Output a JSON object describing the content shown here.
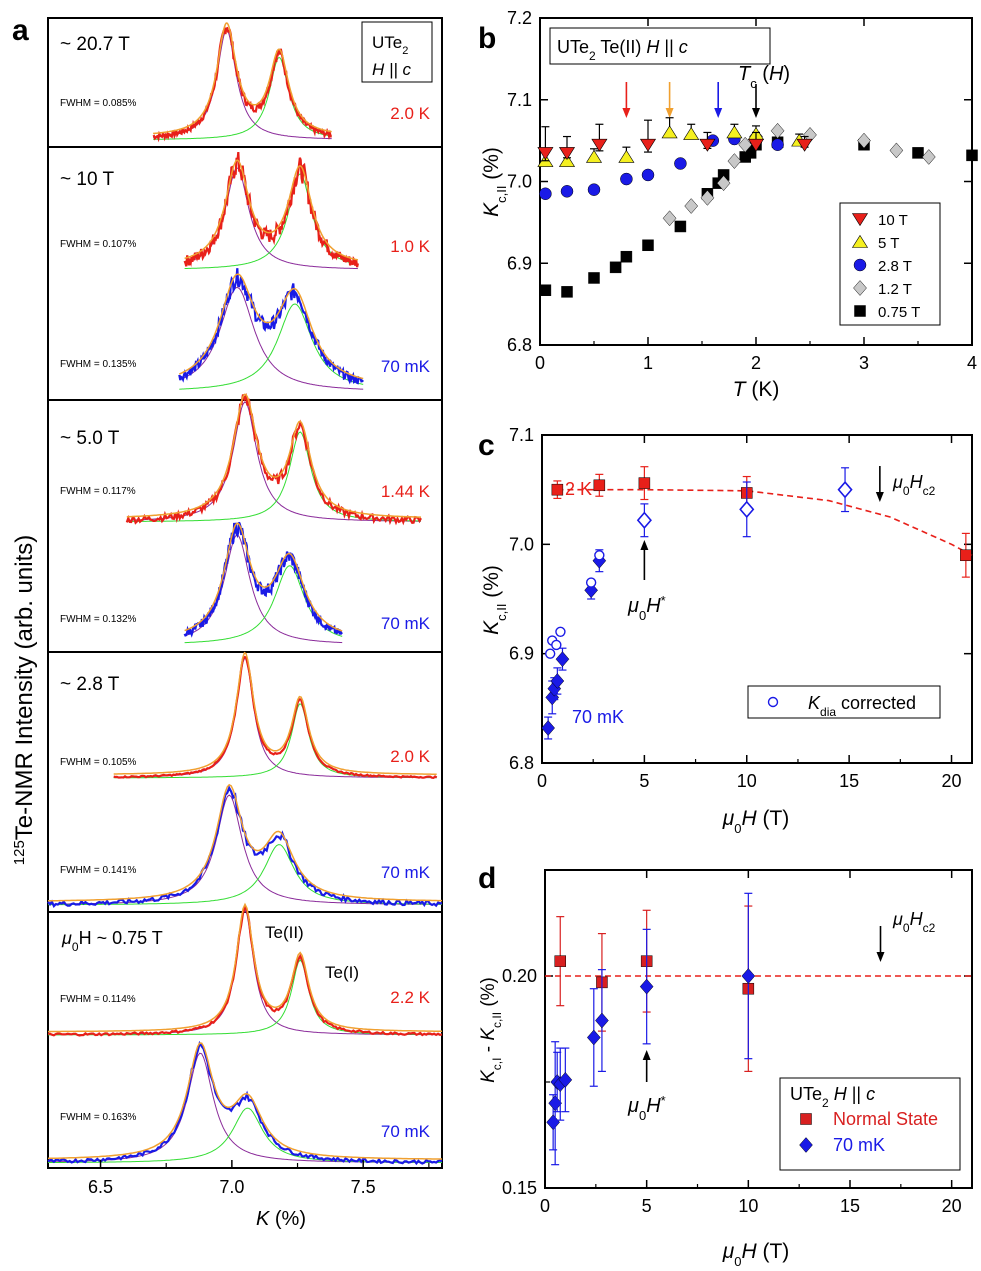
{
  "colors": {
    "red": "#e8201a",
    "blue": "#1a1ae6",
    "orange": "#f0a030",
    "green": "#33dd33",
    "purple": "#8a2a9a",
    "yellow": "#f5f020",
    "gray": "#c8c8c8",
    "black": "#000000",
    "diamond_blue": "#1a1ae6",
    "square_red": "#d82020"
  },
  "panel_a": {
    "panel_label": "a",
    "ylabel_sup": "125",
    "ylabel": "Te-NMR Intensity (arb. units)",
    "xlabel": "K (%)",
    "x_ticks": [
      "6.5",
      "7.0",
      "7.5"
    ],
    "sample_line1": "UTe",
    "sample_line1_sub": "2",
    "sample_line2": "H || c",
    "subpanels": [
      {
        "field": "~ 20.7 T",
        "spectra": [
          {
            "temp": "2.0 K",
            "fwhm": "FWHM = 0.085%",
            "color": "red",
            "p1": [
              6.98,
              0.045
            ],
            "p2": [
              7.18,
              0.045
            ],
            "amp1": 1.0,
            "amp2": 0.75,
            "x0": 6.7,
            "x1": 7.38,
            "noise": 0.08
          }
        ]
      },
      {
        "field": "~ 10 T",
        "spectra": [
          {
            "temp": "1.0 K",
            "fwhm": "FWHM = 0.107%",
            "color": "red",
            "p1": [
              7.02,
              0.055
            ],
            "p2": [
              7.26,
              0.055
            ],
            "amp1": 0.85,
            "amp2": 0.8,
            "x0": 6.82,
            "x1": 7.48,
            "noise": 0.14
          },
          {
            "temp": "70 mK",
            "fwhm": "FWHM = 0.135%",
            "color": "blue",
            "p1": [
              7.02,
              0.08
            ],
            "p2": [
              7.24,
              0.08
            ],
            "amp1": 0.95,
            "amp2": 0.8,
            "x0": 6.8,
            "x1": 7.5,
            "noise": 0.1
          }
        ]
      },
      {
        "field": "~ 5.0 T",
        "spectra": [
          {
            "temp": "1.44 K",
            "fwhm": "FWHM = 0.117%",
            "color": "red",
            "p1": [
              7.05,
              0.055
            ],
            "p2": [
              7.26,
              0.05
            ],
            "amp1": 1.0,
            "amp2": 0.75,
            "x0": 6.6,
            "x1": 7.72,
            "noise": 0.09
          },
          {
            "temp": "70 mK",
            "fwhm": "FWHM = 0.132%",
            "color": "blue",
            "p1": [
              7.02,
              0.06
            ],
            "p2": [
              7.22,
              0.07
            ],
            "amp1": 1.0,
            "amp2": 0.72,
            "x0": 6.82,
            "x1": 7.42,
            "noise": 0.1
          }
        ]
      },
      {
        "field": "~ 2.8 T",
        "spectra": [
          {
            "temp": "2.0 K",
            "fwhm": "FWHM = 0.105%",
            "color": "red",
            "p1": [
              7.05,
              0.04
            ],
            "p2": [
              7.26,
              0.04
            ],
            "amp1": 1.0,
            "amp2": 0.62,
            "x0": 6.55,
            "x1": 7.78,
            "noise": 0.02
          },
          {
            "temp": "70 mK",
            "fwhm": "FWHM = 0.141%",
            "color": "blue",
            "p1": [
              6.99,
              0.06
            ],
            "p2": [
              7.18,
              0.07
            ],
            "amp1": 1.0,
            "amp2": 0.55,
            "x0": 6.3,
            "x1": 7.8,
            "noise": 0.07
          }
        ]
      },
      {
        "field": "μ0H ~ 0.75 T",
        "field_mu": "μ",
        "field_sub": "0",
        "field_rest": "H ~ 0.75 T",
        "label_te2": "Te(II)",
        "label_te1": "Te(I)",
        "spectra": [
          {
            "temp": "2.2 K",
            "fwhm": "FWHM = 0.114%",
            "color": "red",
            "p1": [
              7.05,
              0.04
            ],
            "p2": [
              7.26,
              0.04
            ],
            "amp1": 1.0,
            "amp2": 0.6,
            "x0": 6.3,
            "x1": 7.8,
            "noise": 0.03
          },
          {
            "temp": "70 mK",
            "fwhm": "FWHM = 0.163%",
            "color": "blue",
            "p1": [
              6.88,
              0.06
            ],
            "p2": [
              7.06,
              0.07
            ],
            "amp1": 1.0,
            "amp2": 0.5,
            "x0": 6.3,
            "x1": 7.8,
            "noise": 0.05
          }
        ]
      }
    ]
  },
  "chart_data": [
    {
      "id": "b",
      "type": "scatter",
      "panel_label": "b",
      "title_main": "UTe",
      "title_sub": "2",
      "title_rest": " Te(II)  H || c",
      "xlabel": "T (K)",
      "ylabel_main": "K",
      "ylabel_sub": "c,II",
      "ylabel_rest": " (%)",
      "xlim": [
        0,
        4
      ],
      "ylim": [
        6.8,
        7.2
      ],
      "x_ticks": [
        0,
        1,
        2,
        3,
        4
      ],
      "y_ticks": [
        6.8,
        6.9,
        7.0,
        7.1,
        7.2
      ],
      "tc_label": "T",
      "tc_sub": "c",
      "tc_rest": " (H)",
      "arrows": [
        {
          "x": 0.8,
          "color": "red"
        },
        {
          "x": 1.2,
          "color": "orange"
        },
        {
          "x": 1.65,
          "color": "blue"
        },
        {
          "x": 2.0,
          "color": "black"
        }
      ],
      "series": [
        {
          "name": "10 T",
          "marker": "triangle-down",
          "color": "red",
          "points": [
            [
              0.05,
              7.035,
              0.032
            ],
            [
              0.25,
              7.035,
              0.02
            ],
            [
              0.55,
              7.045,
              0.025
            ],
            [
              1.0,
              7.045,
              0.03
            ],
            [
              1.55,
              7.045,
              0.015
            ],
            [
              2.0,
              7.045,
              0.015
            ],
            [
              2.45,
              7.045,
              0.01
            ]
          ]
        },
        {
          "name": "5 T",
          "marker": "triangle-up",
          "color": "yellow",
          "points": [
            [
              0.05,
              7.025,
              0.012
            ],
            [
              0.25,
              7.025,
              0.012
            ],
            [
              0.5,
              7.03,
              0.01
            ],
            [
              0.8,
              7.03,
              0.012
            ],
            [
              1.2,
              7.06,
              0.018
            ],
            [
              1.4,
              7.058,
              0.012
            ],
            [
              1.8,
              7.06,
              0.01
            ],
            [
              2.0,
              7.058,
              0.01
            ],
            [
              2.4,
              7.05,
              0.008
            ]
          ]
        },
        {
          "name": "2.8 T",
          "marker": "circle",
          "color": "blue",
          "points": [
            [
              0.05,
              6.985,
              0
            ],
            [
              0.25,
              6.988,
              0
            ],
            [
              0.5,
              6.99,
              0
            ],
            [
              0.8,
              7.003,
              0
            ],
            [
              1.0,
              7.008,
              0
            ],
            [
              1.3,
              7.022,
              0
            ],
            [
              1.6,
              7.05,
              0
            ],
            [
              1.8,
              7.052,
              0
            ],
            [
              2.0,
              7.05,
              0
            ],
            [
              2.2,
              7.045,
              0
            ]
          ]
        },
        {
          "name": "1.2 T",
          "marker": "diamond",
          "color": "gray",
          "points": [
            [
              1.2,
              6.955,
              0
            ],
            [
              1.4,
              6.97,
              0
            ],
            [
              1.55,
              6.98,
              0
            ],
            [
              1.7,
              6.998,
              0
            ],
            [
              1.8,
              7.025,
              0
            ],
            [
              1.9,
              7.045,
              0
            ],
            [
              2.0,
              7.055,
              0
            ],
            [
              2.2,
              7.062,
              0
            ],
            [
              2.5,
              7.057,
              0
            ],
            [
              3.0,
              7.05,
              0
            ],
            [
              3.3,
              7.038,
              0
            ],
            [
              3.6,
              7.03,
              0
            ]
          ]
        },
        {
          "name": "0.75 T",
          "marker": "square",
          "color": "black",
          "points": [
            [
              0.05,
              6.867,
              0
            ],
            [
              0.25,
              6.865,
              0
            ],
            [
              0.5,
              6.882,
              0
            ],
            [
              0.7,
              6.895,
              0
            ],
            [
              0.8,
              6.908,
              0
            ],
            [
              1.0,
              6.922,
              0
            ],
            [
              1.3,
              6.945,
              0
            ],
            [
              1.55,
              6.985,
              0
            ],
            [
              1.65,
              6.998,
              0
            ],
            [
              1.7,
              7.008,
              0
            ],
            [
              1.9,
              7.03,
              0
            ],
            [
              1.95,
              7.035,
              0
            ],
            [
              2.0,
              7.045,
              0
            ],
            [
              2.2,
              7.048,
              0
            ],
            [
              3.0,
              7.045,
              0
            ],
            [
              3.5,
              7.035,
              0
            ],
            [
              4.0,
              7.032,
              0
            ]
          ]
        }
      ]
    },
    {
      "id": "c",
      "type": "scatter",
      "panel_label": "c",
      "xlabel_mu": "μ",
      "xlabel_sub": "0",
      "xlabel_rest": "H (T)",
      "ylabel_main": "K",
      "ylabel_sub": "c,II",
      "ylabel_rest": " (%)",
      "xlim": [
        0,
        21
      ],
      "ylim": [
        6.8,
        7.1
      ],
      "x_ticks": [
        0,
        5,
        10,
        15,
        20
      ],
      "y_ticks": [
        6.8,
        6.9,
        7.0,
        7.1
      ],
      "label_2k": "2 K",
      "label_70mk": "70 mK",
      "hc2_mu": "μ",
      "hc2_sub": "0",
      "hc2_rest": "H",
      "hc2_subsub": "c2",
      "hc2_x": 16.5,
      "hstar_x": 5.0,
      "hstar_mu": "μ",
      "hstar_sub": "0",
      "hstar_rest": "H",
      "hstar_sup": "*",
      "legend_label_main": "K",
      "legend_label_sub": "dia",
      "legend_label_rest": " corrected",
      "series": [
        {
          "name": "2 K",
          "marker": "square",
          "color": "red",
          "points": [
            [
              0.75,
              7.05,
              0.008
            ],
            [
              2.8,
              7.054,
              0.01
            ],
            [
              5.0,
              7.056,
              0.015
            ],
            [
              10.0,
              7.047,
              0.015
            ],
            [
              20.7,
              6.99,
              0.02
            ]
          ]
        },
        {
          "name": "70 mK",
          "marker": "diamond",
          "color": "diamond_blue",
          "points": [
            [
              0.3,
              6.832,
              0.01
            ],
            [
              0.5,
              6.86,
              0.015
            ],
            [
              0.6,
              6.868,
              0.01
            ],
            [
              0.75,
              6.875,
              0.012
            ],
            [
              1.0,
              6.895,
              0.01
            ],
            [
              2.4,
              6.958,
              0.008
            ],
            [
              2.8,
              6.985,
              0.01
            ],
            [
              5.0,
              7.022,
              0.015
            ],
            [
              10.0,
              7.032,
              0.025
            ],
            [
              14.8,
              7.05,
              0.02
            ]
          ]
        },
        {
          "name": "Kdia corrected",
          "marker": "open-circle",
          "color": "diamond_blue",
          "points": [
            [
              0.4,
              6.9,
              0
            ],
            [
              0.5,
              6.912,
              0
            ],
            [
              0.7,
              6.908,
              0
            ],
            [
              0.9,
              6.92,
              0
            ],
            [
              2.4,
              6.965,
              0
            ],
            [
              2.8,
              6.99,
              0
            ],
            [
              5.0,
              7.025,
              0
            ],
            [
              10.0,
              7.035,
              0
            ],
            [
              14.8,
              7.05,
              0
            ]
          ]
        }
      ],
      "fit_line": {
        "color": "red",
        "x": [
          0.75,
          5,
          10,
          14,
          17,
          20,
          21
        ],
        "y": [
          7.05,
          7.05,
          7.049,
          7.04,
          7.025,
          7.0,
          6.99
        ]
      }
    },
    {
      "id": "d",
      "type": "scatter",
      "panel_label": "d",
      "xlabel_mu": "μ",
      "xlabel_sub": "0",
      "xlabel_rest": "H (T)",
      "ylabel_a": "K",
      "ylabel_a_sub": "c,I",
      "ylabel_mid": " - K",
      "ylabel_b_sub": "c,II",
      "ylabel_rest": " (%)",
      "xlim": [
        0,
        21
      ],
      "ylim": [
        0.15,
        0.225
      ],
      "x_ticks": [
        0,
        5,
        10,
        15,
        20
      ],
      "y_ticks": [
        0.15,
        0.2
      ],
      "y_tick_labels": [
        "0.15",
        "0.20"
      ],
      "ref_line": 0.2,
      "hc2_mu": "μ",
      "hc2_sub": "0",
      "hc2_rest": "H",
      "hc2_subsub": "c2",
      "hc2_x": 16.5,
      "hstar_x": 5.0,
      "hstar_mu": "μ",
      "hstar_sub": "0",
      "hstar_rest": "H",
      "hstar_sup": "*",
      "legend_title_main": "UTe",
      "legend_title_sub": "2",
      "legend_title_rest": " H || c",
      "series": [
        {
          "name": "Normal State",
          "marker": "square",
          "color": "square_red",
          "points": [
            [
              0.75,
              0.2035,
              0.0105
            ],
            [
              2.8,
              0.1985,
              0.0115
            ],
            [
              5.0,
              0.2035,
              0.012
            ],
            [
              10.0,
              0.197,
              0.0195
            ]
          ]
        },
        {
          "name": "70 mK",
          "marker": "diamond",
          "color": "diamond_blue",
          "points": [
            [
              0.4,
              0.1655,
              0.0065
            ],
            [
              0.5,
              0.17,
              0.0145
            ],
            [
              0.6,
              0.175,
              0.007
            ],
            [
              0.75,
              0.1745,
              0.0085
            ],
            [
              1.0,
              0.1755,
              0.0075
            ],
            [
              2.4,
              0.1855,
              0.0115
            ],
            [
              2.8,
              0.1895,
              0.012
            ],
            [
              5.0,
              0.1975,
              0.0135
            ],
            [
              10.0,
              0.2,
              0.0195
            ]
          ]
        }
      ]
    }
  ]
}
